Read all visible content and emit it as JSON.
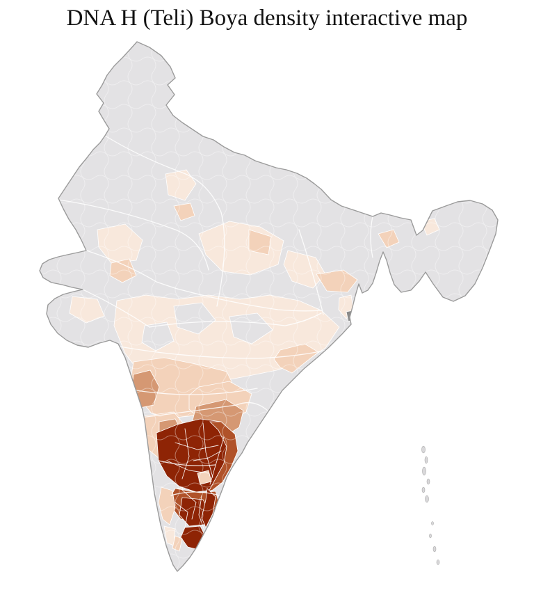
{
  "page": {
    "title": "DNA H (Teli) Boya density interactive map",
    "background_color": "#ffffff"
  },
  "map": {
    "kind": "india-district-density-choropleth",
    "colors": {
      "no_data": "#e3e2e4",
      "district_border": "#ffffff",
      "outline": "#9b9b9b",
      "island": "#d9d8da",
      "metro_gray": "#8a8a8a"
    },
    "density_scale": [
      {
        "level": "none",
        "color": "#e3e2e4"
      },
      {
        "level": "very_low",
        "color": "#f8e8dc"
      },
      {
        "level": "low",
        "color": "#f3d2ba"
      },
      {
        "level": "medium",
        "color": "#d59873"
      },
      {
        "level": "high",
        "color": "#b05229"
      },
      {
        "level": "very_high",
        "color": "#8e2405"
      }
    ],
    "regions": [
      {
        "id": "central-india-band",
        "level": "very_low",
        "color": "#f8e8dc"
      },
      {
        "id": "central-gray-inlier-1",
        "level": "none",
        "color": "#e3e2e4"
      },
      {
        "id": "central-gray-inlier-2",
        "level": "none",
        "color": "#e3e2e4"
      },
      {
        "id": "central-gray-inlier-3",
        "level": "none",
        "color": "#e3e2e4"
      },
      {
        "id": "punjab-patch",
        "level": "very_low",
        "color": "#f8e8dc"
      },
      {
        "id": "punjab-south-patch",
        "level": "low",
        "color": "#f3d2ba"
      },
      {
        "id": "rajasthan-east-patch",
        "level": "very_low",
        "color": "#f8e8dc"
      },
      {
        "id": "rajasthan-south-patch",
        "level": "low",
        "color": "#f3d2ba"
      },
      {
        "id": "gujarat-patch",
        "level": "very_low",
        "color": "#f8e8dc"
      },
      {
        "id": "uttar-pradesh-west",
        "level": "very_low",
        "color": "#f8e8dc"
      },
      {
        "id": "uttar-pradesh-patch",
        "level": "low",
        "color": "#f3d2ba"
      },
      {
        "id": "uttar-pradesh-east",
        "level": "very_low",
        "color": "#f8e8dc"
      },
      {
        "id": "bihar-patch",
        "level": "low",
        "color": "#f3d2ba"
      },
      {
        "id": "bengal-patch",
        "level": "very_low",
        "color": "#f8e8dc"
      },
      {
        "id": "kolkata-district",
        "level": "metro",
        "color": "#8a8a8a"
      },
      {
        "id": "northeast-corridor-patch",
        "level": "low",
        "color": "#f3d2ba"
      },
      {
        "id": "northeast-assam-patch",
        "level": "very_low",
        "color": "#f8e8dc"
      },
      {
        "id": "odisha-region",
        "level": "low",
        "color": "#f3d2ba"
      },
      {
        "id": "maharashtra-region",
        "level": "low",
        "color": "#f3d2ba"
      },
      {
        "id": "west-maharashtra-patch",
        "level": "medium",
        "color": "#d59873"
      },
      {
        "id": "telangana-region",
        "level": "low",
        "color": "#f3d2ba"
      },
      {
        "id": "telangana-medium-patch",
        "level": "medium",
        "color": "#d59873"
      },
      {
        "id": "north-karnataka-region",
        "level": "low",
        "color": "#f3d2ba"
      },
      {
        "id": "north-karnataka-patch",
        "level": "medium",
        "color": "#d59873"
      },
      {
        "id": "rayalaseema-core",
        "level": "very_high",
        "color": "#8e2405"
      },
      {
        "id": "coastal-andhra-strip",
        "level": "high",
        "color": "#b05229"
      },
      {
        "id": "rayalaseema-light-inlier-1",
        "level": "low",
        "color": "#f3d2ba"
      },
      {
        "id": "rayalaseema-light-inlier-2",
        "level": "very_low",
        "color": "#f8e8dc"
      },
      {
        "id": "north-tamilnadu-region",
        "level": "high",
        "color": "#b05229"
      },
      {
        "id": "central-tamilnadu-patch",
        "level": "very_high",
        "color": "#8e2405"
      },
      {
        "id": "tamilnadu-coast-patch",
        "level": "very_high",
        "color": "#8e2405"
      },
      {
        "id": "south-tamilnadu-patch",
        "level": "very_high",
        "color": "#8e2405"
      },
      {
        "id": "kerala-north-patch",
        "level": "low",
        "color": "#f3d2ba"
      },
      {
        "id": "kerala-south-patch",
        "level": "very_low",
        "color": "#f8e8dc"
      },
      {
        "id": "tamilnadu-light-patch",
        "level": "low",
        "color": "#f3d2ba"
      }
    ]
  }
}
